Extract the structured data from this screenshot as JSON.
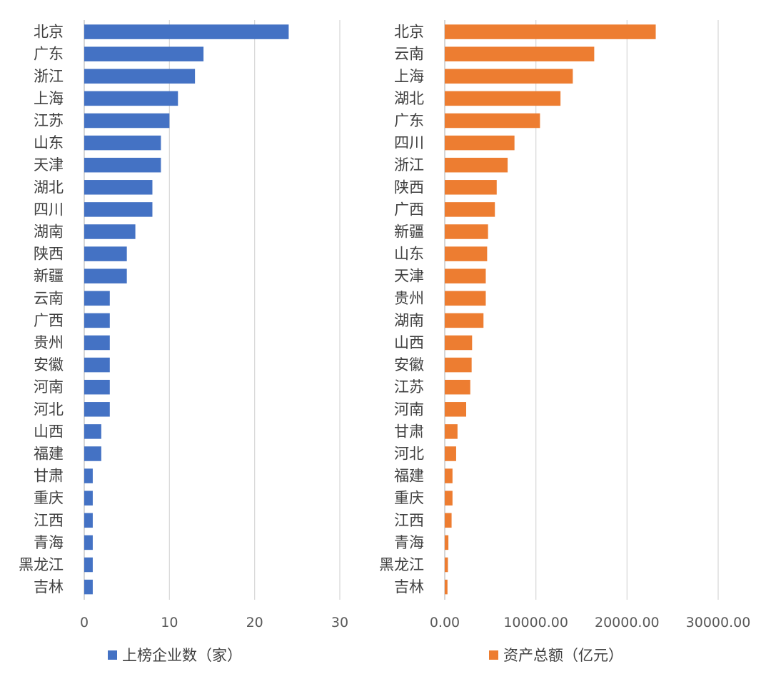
{
  "chart_data": [
    {
      "type": "bar",
      "orientation": "horizontal",
      "title": "",
      "xlabel": "",
      "ylabel": "",
      "xlim": [
        0,
        30
      ],
      "ticks": [
        "0",
        "10",
        "20",
        "30"
      ],
      "tick_values": [
        0,
        10,
        20,
        30
      ],
      "grid": true,
      "legend_position": "bottom",
      "color": "#4472C4",
      "series": [
        {
          "name": "上榜企业数（家）",
          "values": [
            24,
            14,
            13,
            11,
            10,
            9,
            9,
            8,
            8,
            6,
            5,
            5,
            3,
            3,
            3,
            3,
            3,
            3,
            2,
            2,
            1,
            1,
            1,
            1,
            1,
            1
          ]
        }
      ],
      "categories": [
        "北京",
        "广东",
        "浙江",
        "上海",
        "江苏",
        "山东",
        "天津",
        "湖北",
        "四川",
        "湖南",
        "陕西",
        "新疆",
        "云南",
        "广西",
        "贵州",
        "安徽",
        "河南",
        "河北",
        "山西",
        "福建",
        "甘肃",
        "重庆",
        "江西",
        "青海",
        "黑龙江",
        "吉林"
      ]
    },
    {
      "type": "bar",
      "orientation": "horizontal",
      "title": "",
      "xlabel": "",
      "ylabel": "",
      "xlim": [
        0,
        30000
      ],
      "ticks": [
        "0.00",
        "10000.00",
        "20000.00",
        "30000.00"
      ],
      "tick_values": [
        0,
        10000,
        20000,
        30000
      ],
      "grid": true,
      "legend_position": "bottom",
      "color": "#ED7D31",
      "series": [
        {
          "name": "资产总额（亿元）",
          "values": [
            23150,
            16400,
            14050,
            12700,
            10450,
            7650,
            6900,
            5700,
            5500,
            4750,
            4650,
            4500,
            4500,
            4250,
            3000,
            2950,
            2800,
            2350,
            1400,
            1250,
            850,
            850,
            750,
            400,
            350,
            300
          ]
        }
      ],
      "categories": [
        "北京",
        "云南",
        "上海",
        "湖北",
        "广东",
        "四川",
        "浙江",
        "陕西",
        "广西",
        "新疆",
        "山东",
        "天津",
        "贵州",
        "湖南",
        "山西",
        "安徽",
        "江苏",
        "河南",
        "甘肃",
        "河北",
        "福建",
        "重庆",
        "江西",
        "青海",
        "黑龙江",
        "吉林"
      ]
    }
  ]
}
